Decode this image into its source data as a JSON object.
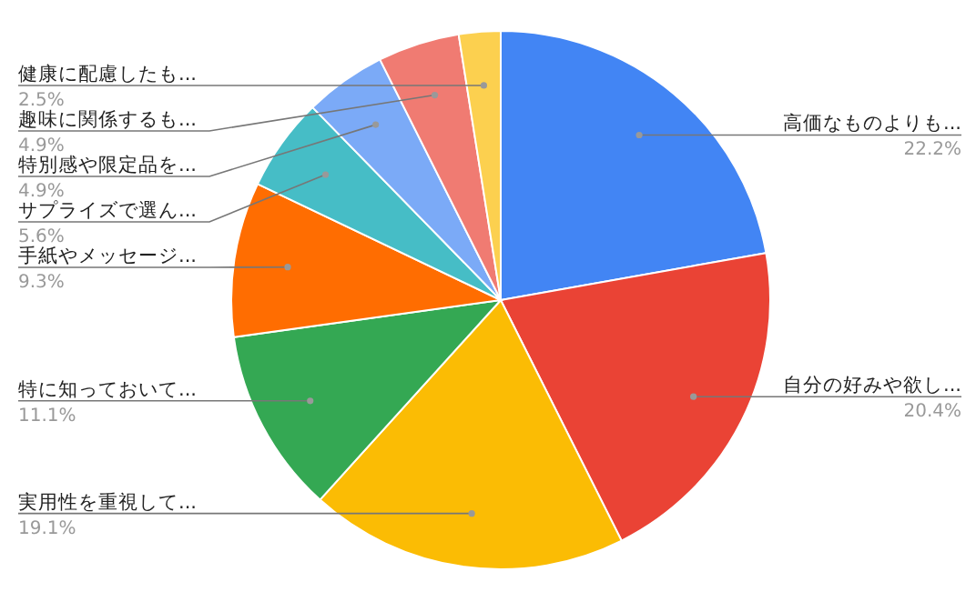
{
  "chart_data": {
    "type": "pie",
    "categories": [
      "高価なものよりも...",
      "自分の好みや欲し...",
      "実用性を重視して...",
      "特に知っておいて...",
      "手紙やメッセージ...",
      "サプライズで選ん...",
      "特別感や限定品を...",
      "趣味に関係するも...",
      "健康に配慮したも..."
    ],
    "values": [
      22.2,
      20.4,
      19.1,
      11.1,
      9.3,
      5.6,
      4.9,
      4.9,
      2.5
    ],
    "colors": [
      "#4285f4",
      "#ea4335",
      "#fbbc04",
      "#34a853",
      "#ff6d01",
      "#46bdc6",
      "#7baaf7",
      "#f07b72",
      "#fcd04f"
    ],
    "value_labels": [
      "22.2%",
      "20.4%",
      "19.1%",
      "11.1%",
      "9.3%",
      "5.6%",
      "4.9%",
      "4.9%",
      "2.5%"
    ],
    "legend": false
  }
}
